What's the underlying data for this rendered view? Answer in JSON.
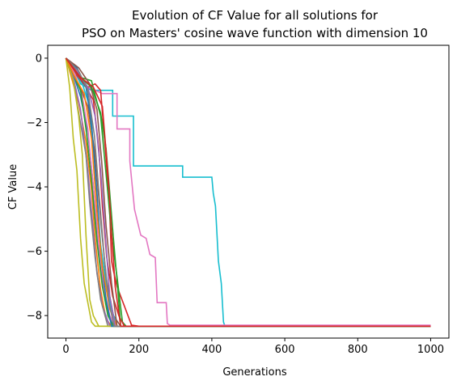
{
  "chart_data": {
    "type": "line",
    "title_lines": [
      "Evolution of CF Value for all solutions for",
      "PSO on Masters' cosine wave function with dimension 10"
    ],
    "xlabel": "Generations",
    "ylabel": "CF Value",
    "xlim": [
      -50,
      1050
    ],
    "ylim": [
      -8.7,
      0.4
    ],
    "xticks": [
      0,
      200,
      400,
      600,
      800,
      1000
    ],
    "yticks": [
      0,
      -2,
      -4,
      -6,
      -8
    ],
    "xtick_labels": [
      "0",
      "200",
      "400",
      "600",
      "800",
      "1000"
    ],
    "ytick_labels": [
      "0",
      "−2",
      "−4",
      "−6",
      "−8"
    ],
    "grid": false,
    "legend": "none",
    "series": [
      {
        "color": "#17becf",
        "x": [
          0,
          20,
          40,
          70,
          100,
          128,
          128,
          185,
          185,
          320,
          320,
          400,
          404,
          410,
          418,
          426,
          432,
          436,
          1000
        ],
        "y": [
          0,
          -0.3,
          -0.8,
          -1.0,
          -1.0,
          -1.0,
          -1.8,
          -1.8,
          -3.35,
          -3.35,
          -3.7,
          -3.7,
          -4.2,
          -4.6,
          -6.3,
          -7.0,
          -8.2,
          -8.33,
          -8.33
        ]
      },
      {
        "color": "#e377c2",
        "x": [
          0,
          30,
          60,
          100,
          140,
          140,
          175,
          175,
          188,
          205,
          220,
          230,
          245,
          250,
          250,
          275,
          278,
          285,
          1000
        ],
        "y": [
          0,
          -0.5,
          -0.9,
          -1.1,
          -1.1,
          -2.2,
          -2.2,
          -3.2,
          -4.7,
          -5.5,
          -5.6,
          -6.1,
          -6.2,
          -7.6,
          -7.6,
          -7.6,
          -8.25,
          -8.3,
          -8.3
        ]
      },
      {
        "color": "#d62728",
        "x": [
          0,
          15,
          40,
          60,
          80,
          95,
          110,
          120,
          125,
          130,
          140,
          160,
          170,
          180,
          200,
          1000
        ],
        "y": [
          0,
          -0.3,
          -0.7,
          -0.9,
          -0.8,
          -1.0,
          -3.1,
          -4.8,
          -6.3,
          -6.6,
          -7.1,
          -7.7,
          -8.0,
          -8.3,
          -8.33,
          -8.33
        ]
      },
      {
        "color": "#2ca02c",
        "x": [
          0,
          20,
          40,
          70,
          95,
          105,
          115,
          125,
          140,
          155,
          165,
          1000
        ],
        "y": [
          0,
          -0.4,
          -0.6,
          -0.7,
          -1.8,
          -3.0,
          -4.2,
          -5.5,
          -6.8,
          -8.2,
          -8.33,
          -8.33
        ]
      },
      {
        "color": "#8c564b",
        "x": [
          0,
          15,
          35,
          60,
          80,
          95,
          110,
          130,
          150,
          1000
        ],
        "y": [
          0,
          -0.4,
          -0.8,
          -1.5,
          -3.0,
          -5.0,
          -6.8,
          -8.0,
          -8.33,
          -8.33
        ]
      },
      {
        "color": "#1f77b4",
        "x": [
          0,
          20,
          40,
          60,
          75,
          85,
          100,
          115,
          130,
          1000
        ],
        "y": [
          0,
          -0.5,
          -1.2,
          -2.3,
          -4.0,
          -5.5,
          -7.0,
          -7.9,
          -8.33,
          -8.33
        ]
      },
      {
        "color": "#ff7f0e",
        "x": [
          0,
          15,
          35,
          55,
          70,
          80,
          95,
          110,
          125,
          1000
        ],
        "y": [
          0,
          -0.6,
          -1.4,
          -2.6,
          -4.1,
          -5.6,
          -7.2,
          -8.1,
          -8.33,
          -8.33
        ]
      },
      {
        "color": "#9467bd",
        "x": [
          0,
          20,
          40,
          60,
          72,
          85,
          100,
          120,
          1000
        ],
        "y": [
          0,
          -0.6,
          -1.6,
          -3.5,
          -5.0,
          -6.7,
          -7.7,
          -8.33,
          -8.33
        ]
      },
      {
        "color": "#7f7f7f",
        "x": [
          0,
          20,
          35,
          55,
          65,
          80,
          95,
          115,
          1000
        ],
        "y": [
          0,
          -0.7,
          -1.7,
          -3.0,
          -4.5,
          -6.2,
          -7.5,
          -8.33,
          -8.33
        ]
      },
      {
        "color": "#bcbd22",
        "x": [
          0,
          10,
          20,
          30,
          40,
          50,
          60,
          70,
          80,
          1000
        ],
        "y": [
          0,
          -0.9,
          -2.5,
          -3.5,
          -5.6,
          -7.0,
          -7.6,
          -8.2,
          -8.33,
          -8.33
        ]
      },
      {
        "color": "#bcbd22",
        "x": [
          0,
          20,
          35,
          45,
          55,
          65,
          75,
          90,
          1000
        ],
        "y": [
          0,
          -0.7,
          -1.8,
          -3.0,
          -5.5,
          -7.5,
          -8.0,
          -8.33,
          -8.33
        ]
      },
      {
        "color": "#17becf",
        "x": [
          0,
          25,
          45,
          65,
          80,
          95,
          110,
          125,
          140,
          1000
        ],
        "y": [
          0,
          -0.4,
          -0.8,
          -1.5,
          -3.5,
          -5.8,
          -7.0,
          -7.8,
          -8.33,
          -8.33
        ]
      },
      {
        "color": "#e377c2",
        "x": [
          0,
          25,
          45,
          60,
          75,
          90,
          105,
          120,
          135,
          1000
        ],
        "y": [
          0,
          -0.5,
          -1.2,
          -2.2,
          -4.0,
          -5.8,
          -7.2,
          -8.0,
          -8.33,
          -8.33
        ]
      },
      {
        "color": "#d62728",
        "x": [
          0,
          30,
          55,
          75,
          90,
          100,
          112,
          128,
          145,
          160,
          1000
        ],
        "y": [
          0,
          -0.5,
          -0.9,
          -1.3,
          -2.8,
          -4.6,
          -6.2,
          -7.4,
          -8.0,
          -8.33,
          -8.33
        ]
      },
      {
        "color": "#2ca02c",
        "x": [
          0,
          20,
          40,
          55,
          70,
          85,
          100,
          115,
          130,
          1000
        ],
        "y": [
          0,
          -0.5,
          -1.0,
          -2.2,
          -3.8,
          -5.7,
          -7.1,
          -8.0,
          -8.33,
          -8.33
        ]
      },
      {
        "color": "#1f77b4",
        "x": [
          0,
          30,
          55,
          70,
          85,
          95,
          110,
          125,
          1000
        ],
        "y": [
          0,
          -0.3,
          -0.9,
          -2.0,
          -4.2,
          -6.0,
          -7.5,
          -8.33,
          -8.33
        ]
      },
      {
        "color": "#ff7f0e",
        "x": [
          0,
          25,
          50,
          70,
          85,
          100,
          120,
          140,
          1000
        ],
        "y": [
          0,
          -0.6,
          -1.1,
          -2.5,
          -4.8,
          -6.5,
          -7.8,
          -8.33,
          -8.33
        ]
      },
      {
        "color": "#9467bd",
        "x": [
          0,
          30,
          60,
          80,
          95,
          108,
          120,
          135,
          1000
        ],
        "y": [
          0,
          -0.4,
          -0.9,
          -1.8,
          -3.5,
          -5.5,
          -7.4,
          -8.33,
          -8.33
        ]
      },
      {
        "color": "#8c564b",
        "x": [
          0,
          35,
          65,
          85,
          98,
          110,
          125,
          140,
          1000
        ],
        "y": [
          0,
          -0.3,
          -0.8,
          -1.6,
          -3.2,
          -5.2,
          -7.0,
          -8.33,
          -8.33
        ]
      },
      {
        "color": "#7f7f7f",
        "x": [
          0,
          35,
          60,
          78,
          92,
          105,
          118,
          132,
          1000
        ],
        "y": [
          0,
          -0.4,
          -1.0,
          -2.4,
          -4.4,
          -6.2,
          -7.6,
          -8.33,
          -8.33
        ]
      },
      {
        "color": "#2ca02c",
        "x": [
          0,
          40,
          70,
          95,
          110,
          120,
          130,
          140,
          150,
          1000
        ],
        "y": [
          0,
          -0.6,
          -0.9,
          -1.7,
          -2.8,
          -4.2,
          -5.6,
          -6.9,
          -8.33,
          -8.33
        ]
      },
      {
        "color": "#d62728",
        "x": [
          0,
          40,
          75,
          100,
          115,
          125,
          135,
          150,
          1000
        ],
        "y": [
          0,
          -0.6,
          -0.9,
          -1.5,
          -3.6,
          -5.4,
          -7.1,
          -8.33,
          -8.33
        ]
      }
    ]
  }
}
